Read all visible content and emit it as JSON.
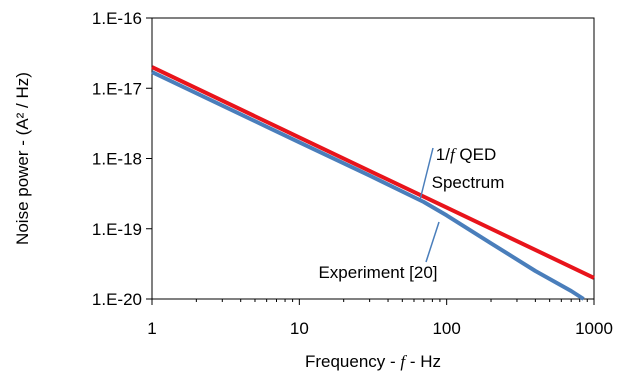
{
  "chart_data": {
    "type": "line",
    "title": "",
    "xlabel": "Frequency - f - Hz",
    "ylabel": "Noise power - (A² / Hz)",
    "x_scale": "log",
    "y_scale": "log",
    "xlim": [
      1,
      1000
    ],
    "ylim": [
      1e-20,
      1e-16
    ],
    "x_ticks": [
      1,
      10,
      100,
      1000
    ],
    "x_tick_labels": [
      "1",
      "10",
      "100",
      "1000"
    ],
    "y_ticks": [
      1e-16,
      1e-17,
      1e-18,
      1e-19,
      1e-20
    ],
    "y_tick_labels": [
      "1.E-16",
      "1.E-17",
      "1.E-18",
      "1.E-19",
      "1.E-20"
    ],
    "grid": false,
    "legend": "none",
    "series": [
      {
        "name": "1/f QED Spectrum",
        "color": "#e8141b",
        "x": [
          1,
          10,
          100,
          1000
        ],
        "y": [
          2e-17,
          2e-18,
          2e-19,
          2e-20
        ]
      },
      {
        "name": "Experiment [20]",
        "color": "#4a7ebb",
        "x": [
          1,
          10,
          30,
          70,
          100,
          200,
          400,
          700,
          850
        ],
        "y": [
          1.7e-17,
          1.7e-18,
          5.7e-19,
          2.4e-19,
          1.55e-19,
          6.2e-20,
          2.5e-20,
          1.3e-20,
          1e-20
        ]
      }
    ],
    "annotations": {
      "qed_line1": "1/f QED",
      "qed_line2": "Spectrum",
      "experiment": "Experiment [20]"
    }
  }
}
